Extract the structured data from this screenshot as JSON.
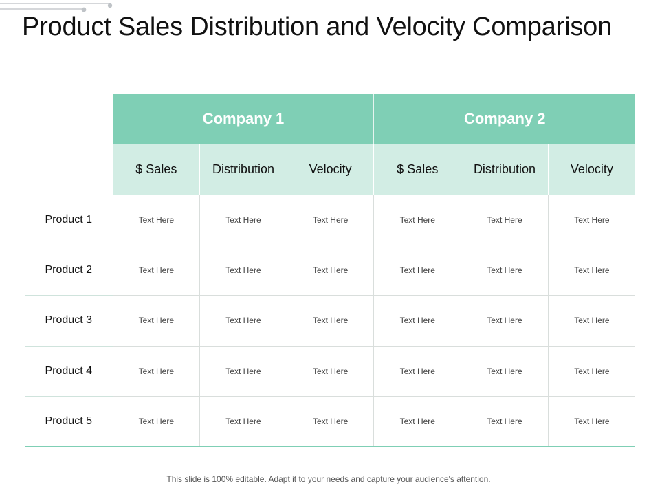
{
  "title": "Product Sales Distribution and Velocity Comparison",
  "companies": [
    "Company 1",
    "Company 2"
  ],
  "metrics": [
    "$ Sales",
    "Distribution",
    "Velocity",
    "$ Sales",
    "Distribution",
    "Velocity"
  ],
  "rows": [
    {
      "label": "Product 1",
      "cells": [
        "Text Here",
        "Text Here",
        "Text Here",
        "Text Here",
        "Text Here",
        "Text Here"
      ]
    },
    {
      "label": "Product 2",
      "cells": [
        "Text Here",
        "Text Here",
        "Text Here",
        "Text Here",
        "Text Here",
        "Text Here"
      ]
    },
    {
      "label": "Product 3",
      "cells": [
        "Text Here",
        "Text Here",
        "Text Here",
        "Text Here",
        "Text Here",
        "Text Here"
      ]
    },
    {
      "label": "Product 4",
      "cells": [
        "Text Here",
        "Text Here",
        "Text Here",
        "Text Here",
        "Text Here",
        "Text Here"
      ]
    },
    {
      "label": "Product 5",
      "cells": [
        "Text Here",
        "Text Here",
        "Text Here",
        "Text Here",
        "Text Here",
        "Text Here"
      ]
    }
  ],
  "footer": "This slide is 100% editable. Adapt it to your needs and capture your audience's attention.",
  "colors": {
    "company_header": "#7fcfb5",
    "metric_header": "#d2ede4",
    "decoration": "#bfc3c7"
  }
}
